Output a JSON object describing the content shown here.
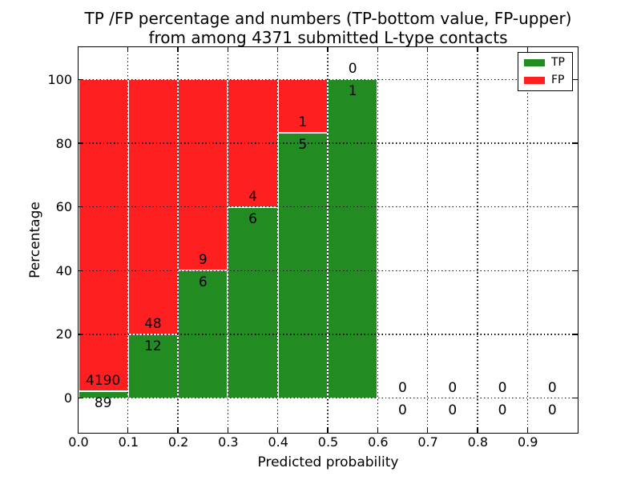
{
  "title": {
    "line1": "TP /FP percentage and numbers (TP-bottom value, FP-upper)",
    "line2": "from among 4371 submitted L-type contacts"
  },
  "colors": {
    "tp": "#228b22",
    "fp": "#fe2020",
    "bar_edge": "#ffffff",
    "axis": "#000000"
  },
  "chart_data": {
    "type": "bar",
    "stacked": true,
    "title": "TP /FP percentage and numbers (TP-bottom value, FP-upper) from among 4371 submitted L-type contacts",
    "total_submitted": 4371,
    "xlabel": "Predicted probability",
    "ylabel": "Percentage",
    "xlim": [
      0.0,
      1.0
    ],
    "ylim": [
      -10.8,
      110.3
    ],
    "grid": true,
    "bin_width": 0.1,
    "xticks": [
      {
        "v": 0.0,
        "label": "0.0"
      },
      {
        "v": 0.1,
        "label": "0.1"
      },
      {
        "v": 0.2,
        "label": "0.2"
      },
      {
        "v": 0.3,
        "label": "0.3"
      },
      {
        "v": 0.4,
        "label": "0.4"
      },
      {
        "v": 0.5,
        "label": "0.5"
      },
      {
        "v": 0.6,
        "label": "0.6"
      },
      {
        "v": 0.7,
        "label": "0.7"
      },
      {
        "v": 0.8,
        "label": "0.8"
      },
      {
        "v": 0.9,
        "label": "0.9"
      }
    ],
    "yticks": [
      {
        "v": 0,
        "label": "0"
      },
      {
        "v": 20,
        "label": "20"
      },
      {
        "v": 40,
        "label": "40"
      },
      {
        "v": 60,
        "label": "60"
      },
      {
        "v": 80,
        "label": "80"
      },
      {
        "v": 100,
        "label": "100"
      }
    ],
    "bins": [
      {
        "x0": 0.0,
        "x1": 0.1,
        "tp": 89,
        "fp": 4190,
        "tp_pct": 2.08
      },
      {
        "x0": 0.1,
        "x1": 0.2,
        "tp": 12,
        "fp": 48,
        "tp_pct": 20
      },
      {
        "x0": 0.2,
        "x1": 0.3,
        "tp": 6,
        "fp": 9,
        "tp_pct": 40
      },
      {
        "x0": 0.3,
        "x1": 0.4,
        "tp": 6,
        "fp": 4,
        "tp_pct": 60
      },
      {
        "x0": 0.4,
        "x1": 0.5,
        "tp": 5,
        "fp": 1,
        "tp_pct": 83.33
      },
      {
        "x0": 0.5,
        "x1": 0.6,
        "tp": 1,
        "fp": 0,
        "tp_pct": 100
      },
      {
        "x0": 0.6,
        "x1": 0.7,
        "tp": 0,
        "fp": 0,
        "tp_pct": 0
      },
      {
        "x0": 0.7,
        "x1": 0.8,
        "tp": 0,
        "fp": 0,
        "tp_pct": 0
      },
      {
        "x0": 0.8,
        "x1": 0.9,
        "tp": 0,
        "fp": 0,
        "tp_pct": 0
      },
      {
        "x0": 0.9,
        "x1": 1.0,
        "tp": 0,
        "fp": 0,
        "tp_pct": 0
      }
    ],
    "series": [
      {
        "name": "TP",
        "color": "#228b22",
        "counts": [
          89,
          12,
          6,
          6,
          5,
          1,
          0,
          0,
          0,
          0
        ],
        "pct": [
          2.08,
          20,
          40,
          60,
          83.33,
          100,
          0,
          0,
          0,
          0
        ]
      },
      {
        "name": "FP",
        "color": "#fe2020",
        "counts": [
          4190,
          48,
          9,
          4,
          1,
          0,
          0,
          0,
          0,
          0
        ],
        "pct": [
          97.92,
          80,
          60,
          40,
          16.67,
          0,
          0,
          0,
          0,
          0
        ]
      }
    ],
    "legend": {
      "position": "upper right",
      "entries": [
        {
          "label": "TP",
          "color": "#228b22"
        },
        {
          "label": "FP",
          "color": "#fe2020"
        }
      ]
    }
  }
}
